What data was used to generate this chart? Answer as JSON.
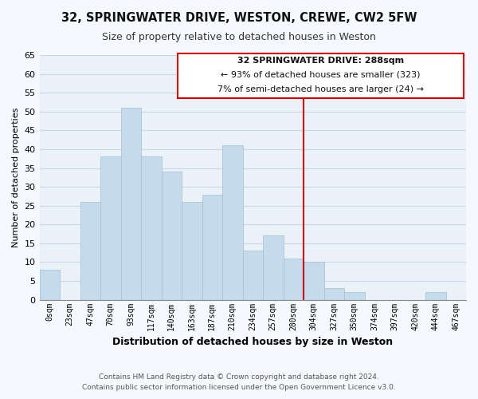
{
  "title": "32, SPRINGWATER DRIVE, WESTON, CREWE, CW2 5FW",
  "subtitle": "Size of property relative to detached houses in Weston",
  "xlabel": "Distribution of detached houses by size in Weston",
  "ylabel": "Number of detached properties",
  "bar_labels": [
    "0sqm",
    "23sqm",
    "47sqm",
    "70sqm",
    "93sqm",
    "117sqm",
    "140sqm",
    "163sqm",
    "187sqm",
    "210sqm",
    "234sqm",
    "257sqm",
    "280sqm",
    "304sqm",
    "327sqm",
    "350sqm",
    "374sqm",
    "397sqm",
    "420sqm",
    "444sqm",
    "467sqm"
  ],
  "bar_heights": [
    8,
    0,
    26,
    38,
    51,
    38,
    34,
    26,
    28,
    41,
    13,
    17,
    11,
    10,
    3,
    2,
    0,
    0,
    0,
    2,
    0
  ],
  "bar_color": "#c5daea",
  "bar_edge_color": "#aac4d8",
  "grid_color": "#c8d8e8",
  "background_color": "#f5f8fc",
  "plot_bg_color": "#eaf1f8",
  "ylim": [
    0,
    65
  ],
  "yticks": [
    0,
    5,
    10,
    15,
    20,
    25,
    30,
    35,
    40,
    45,
    50,
    55,
    60,
    65
  ],
  "vline_color": "#cc0000",
  "annotation_title": "32 SPRINGWATER DRIVE: 288sqm",
  "annotation_line1": "← 93% of detached houses are smaller (323)",
  "annotation_line2": "7% of semi-detached houses are larger (24) →",
  "footer_line1": "Contains HM Land Registry data © Crown copyright and database right 2024.",
  "footer_line2": "Contains public sector information licensed under the Open Government Licence v3.0."
}
